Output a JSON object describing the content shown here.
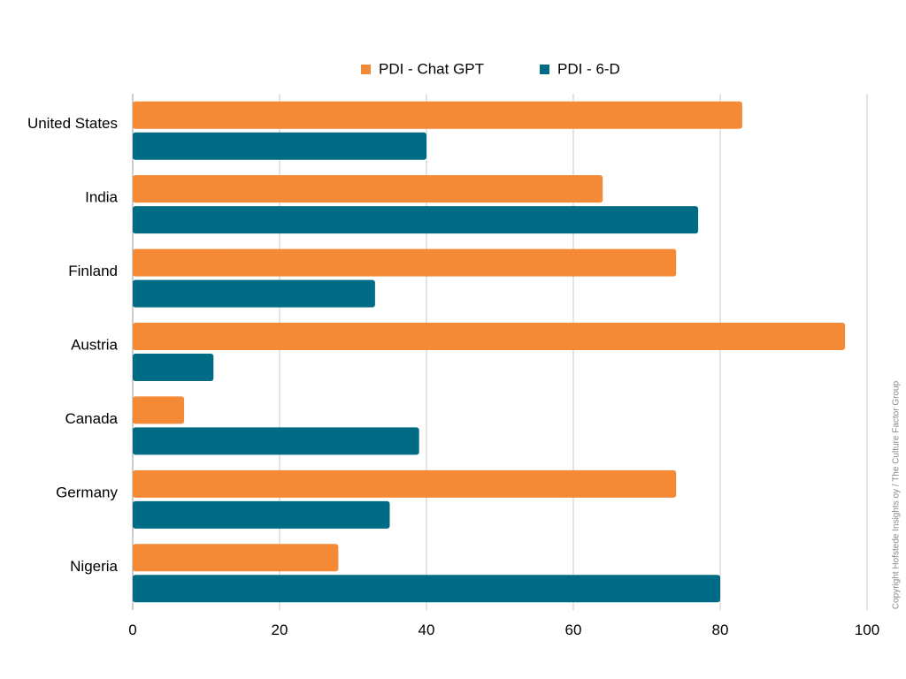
{
  "chart_data": {
    "type": "bar",
    "orientation": "horizontal",
    "categories": [
      "United States",
      "India",
      "Finland",
      "Austria",
      "Canada",
      "Germany",
      "Nigeria"
    ],
    "series": [
      {
        "name": "PDI - Chat GPT",
        "color": "#f48a35",
        "values": [
          83,
          64,
          74,
          97,
          7,
          74,
          28
        ]
      },
      {
        "name": "PDI - 6-D",
        "color": "#006b85",
        "values": [
          40,
          77,
          33,
          11,
          39,
          35,
          80
        ]
      }
    ],
    "x_ticks": [
      0,
      20,
      40,
      60,
      80,
      100
    ],
    "xlim": [
      0,
      100
    ],
    "grid": "vertical",
    "legend_position": "top"
  },
  "copyright": "Copyright Hofstede Insights oy / The Culture Factor Group"
}
